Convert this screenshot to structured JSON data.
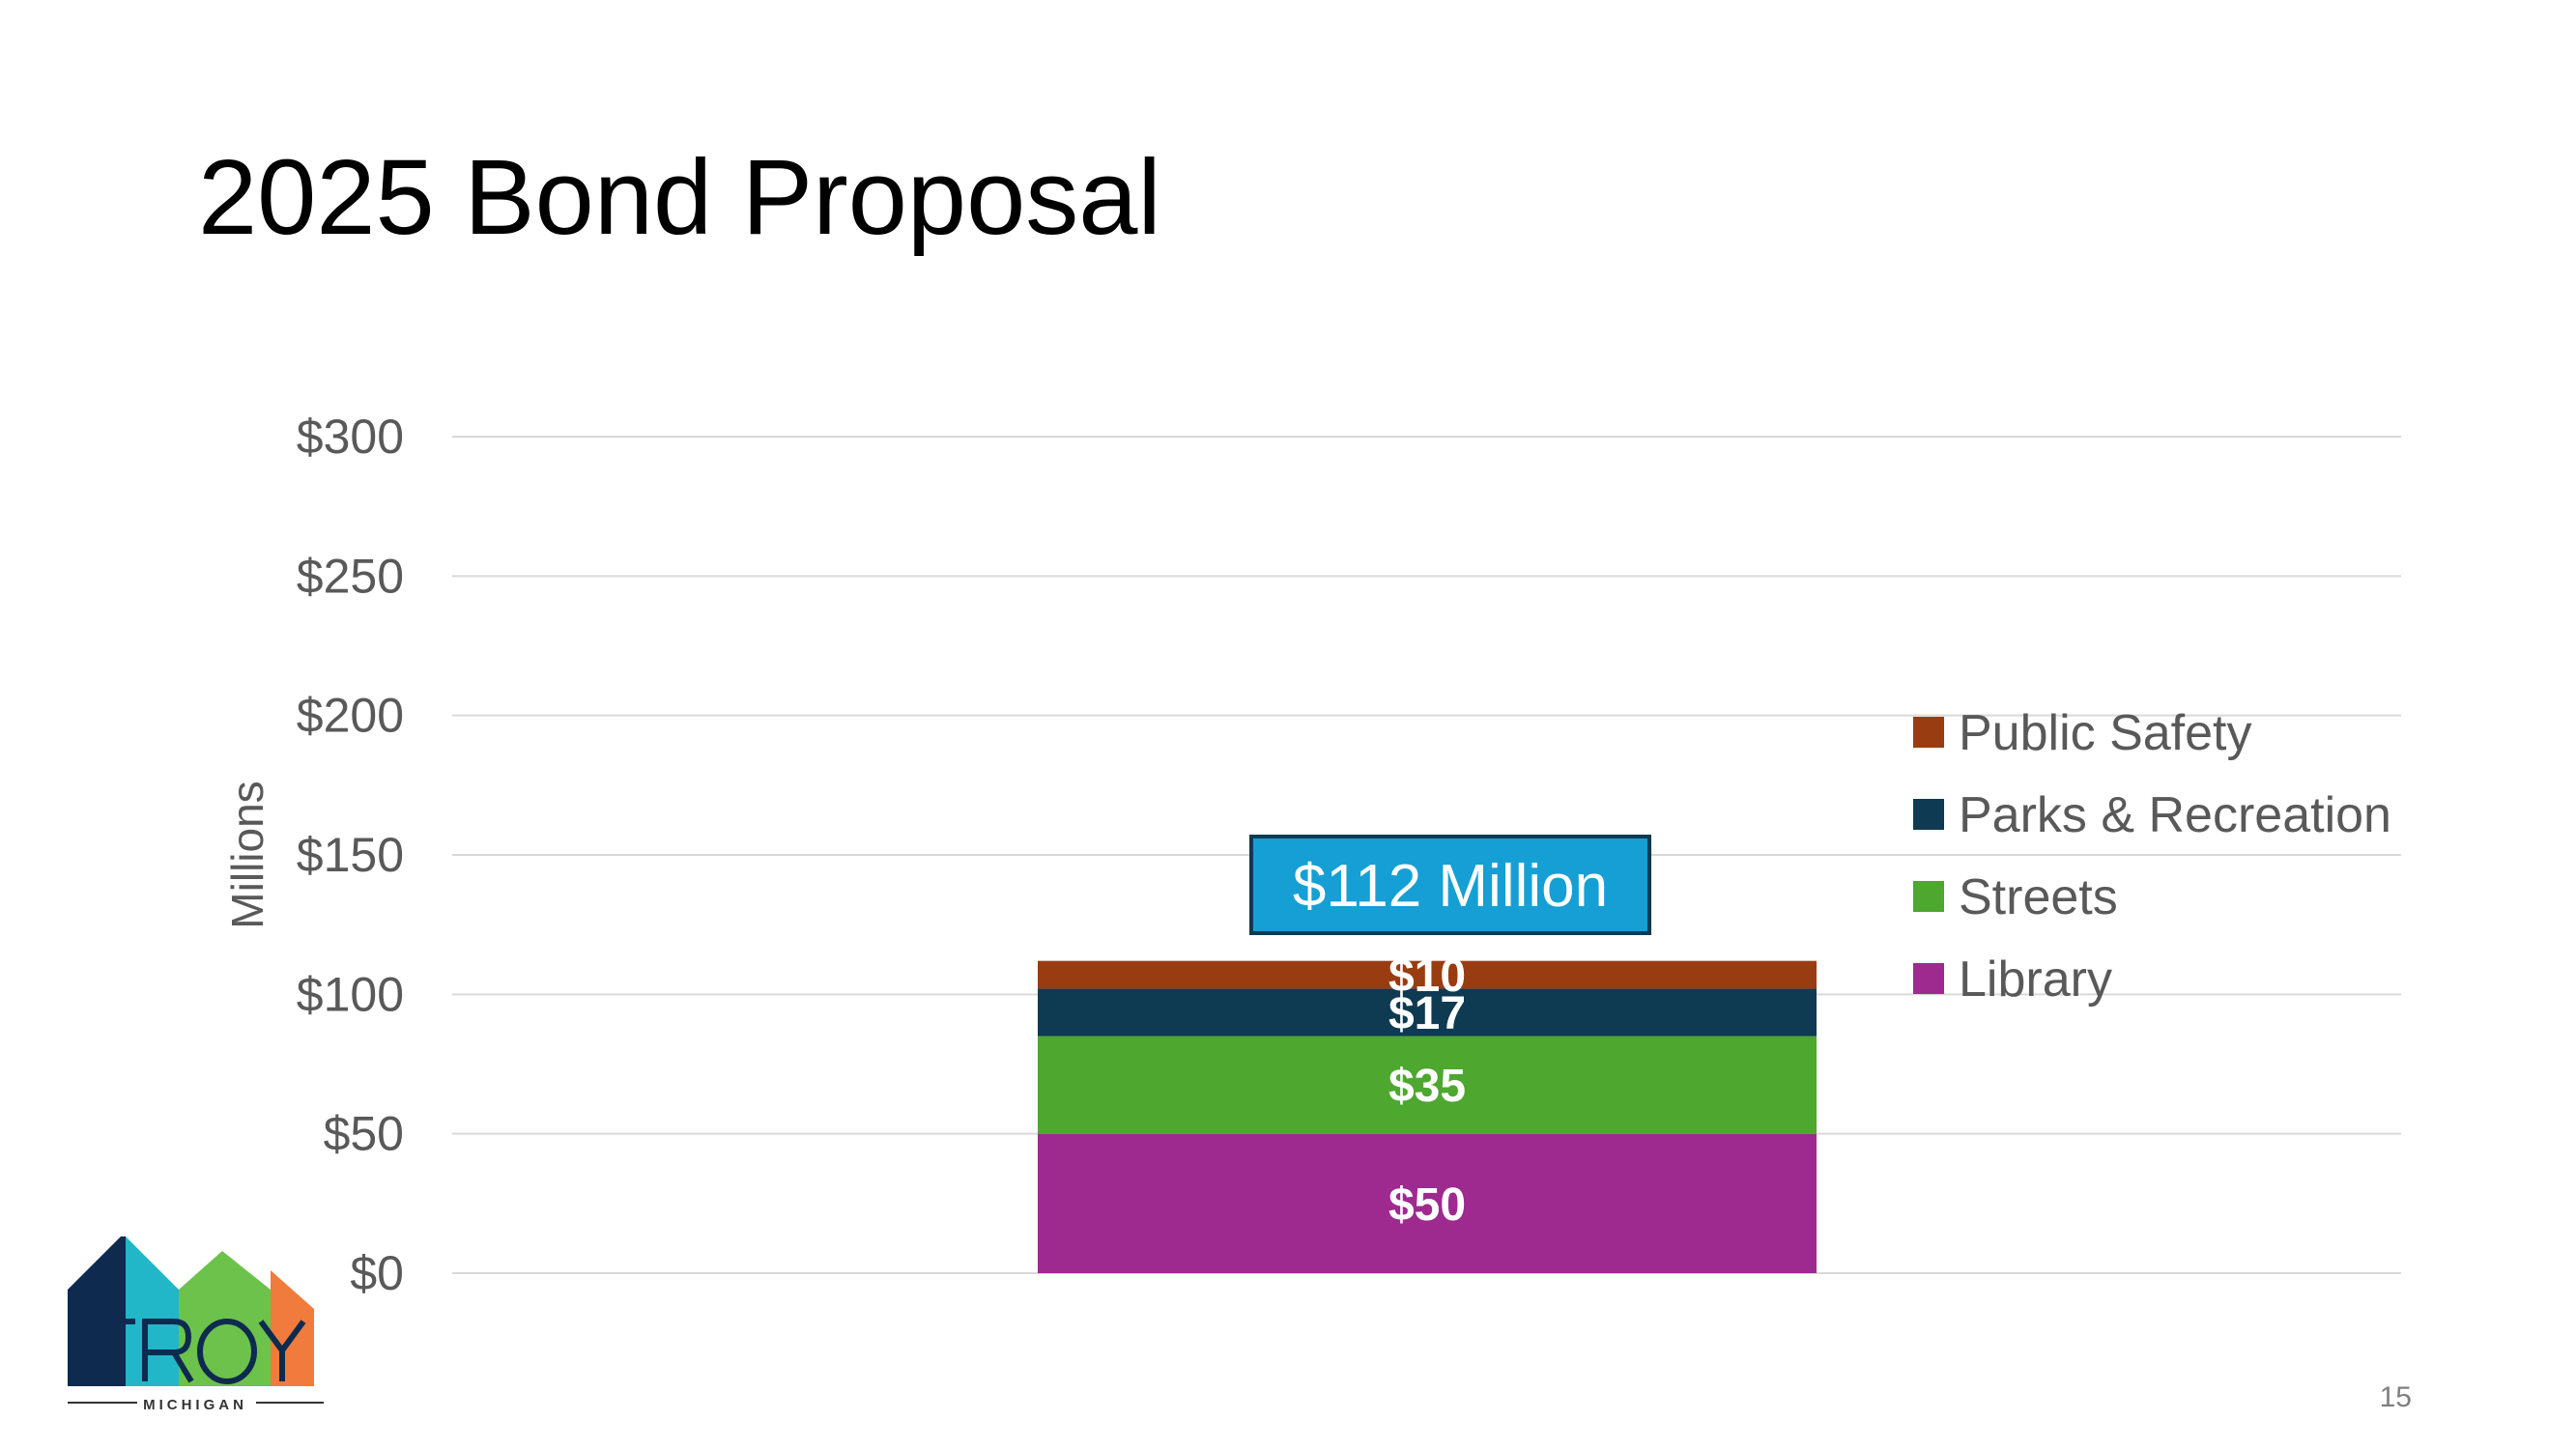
{
  "slide": {
    "title": "2025 Bond Proposal",
    "page_number": "15"
  },
  "logo": {
    "text": "TROY",
    "subtext": "MICHIGAN"
  },
  "colors": {
    "library": "#9E2A8F",
    "streets": "#4EA72E",
    "parks": "#0E3A52",
    "public_safety": "#9A3C12",
    "callout_fill": "#159FD5",
    "callout_border": "#0E3A52",
    "grid": "#D9D9D9"
  },
  "callout": {
    "label": "$112 Million"
  },
  "chart_data": {
    "type": "bar",
    "stacked": true,
    "categories": [
      ""
    ],
    "ylabel": "Millions",
    "ylim": [
      0,
      300
    ],
    "yticks": [
      0,
      50,
      100,
      150,
      200,
      250,
      300
    ],
    "ytick_labels": [
      "$0",
      "$50",
      "$100",
      "$150",
      "$200",
      "$250",
      "$300"
    ],
    "grid": true,
    "legend_position": "right",
    "series": [
      {
        "name": "Library",
        "values": [
          50
        ],
        "label": "$50",
        "color": "#9E2A8F"
      },
      {
        "name": "Streets",
        "values": [
          35
        ],
        "label": "$35",
        "color": "#4EA72E"
      },
      {
        "name": "Parks & Recreation",
        "values": [
          17
        ],
        "label": "$17",
        "color": "#0E3A52"
      },
      {
        "name": "Public Safety",
        "values": [
          10
        ],
        "label": "$10",
        "color": "#9A3C12"
      }
    ],
    "legend_order": [
      "Public Safety",
      "Parks & Recreation",
      "Streets",
      "Library"
    ]
  }
}
